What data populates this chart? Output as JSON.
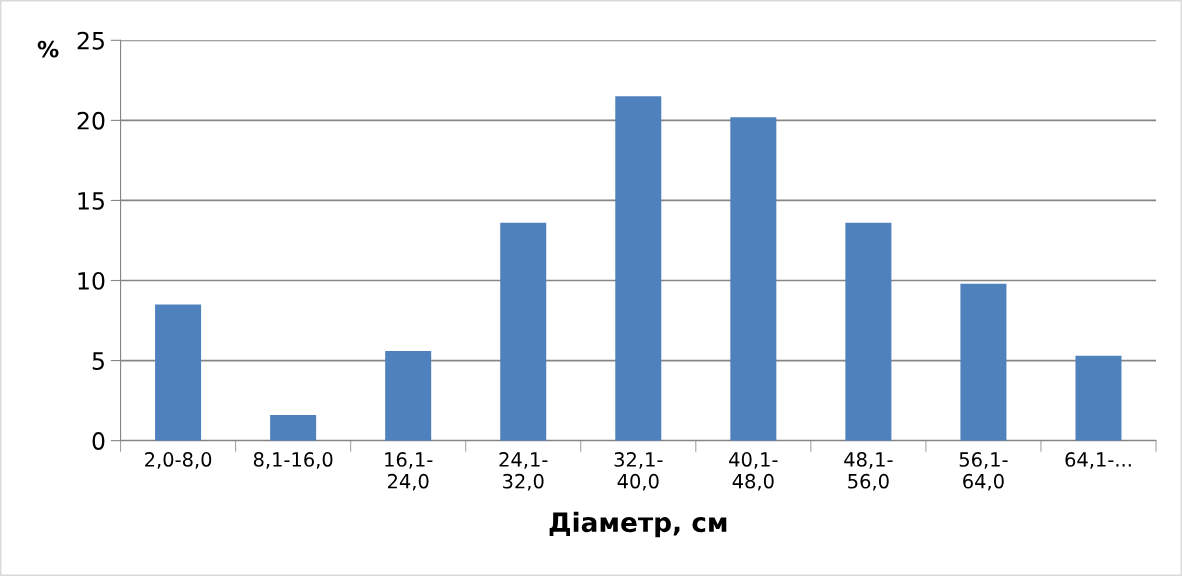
{
  "chart_data": {
    "type": "bar",
    "xlabel": "Діаметр, см",
    "ylabel": "%",
    "categories": [
      "2,0-8,0",
      "8,1-16,0",
      "16,1-\n24,0",
      "24,1-\n32,0",
      "32,1-\n40,0",
      "40,1-\n48,0",
      "48,1-\n56,0",
      "56,1-\n64,0",
      "64,1-..."
    ],
    "values": [
      8.5,
      1.6,
      5.6,
      13.6,
      21.5,
      20.2,
      13.6,
      9.8,
      5.3
    ],
    "color": "#4f81bd",
    "ylim": [
      0,
      25
    ],
    "yticks": [
      0,
      5,
      10,
      15,
      20,
      25
    ],
    "grid": "y",
    "legend": false
  }
}
